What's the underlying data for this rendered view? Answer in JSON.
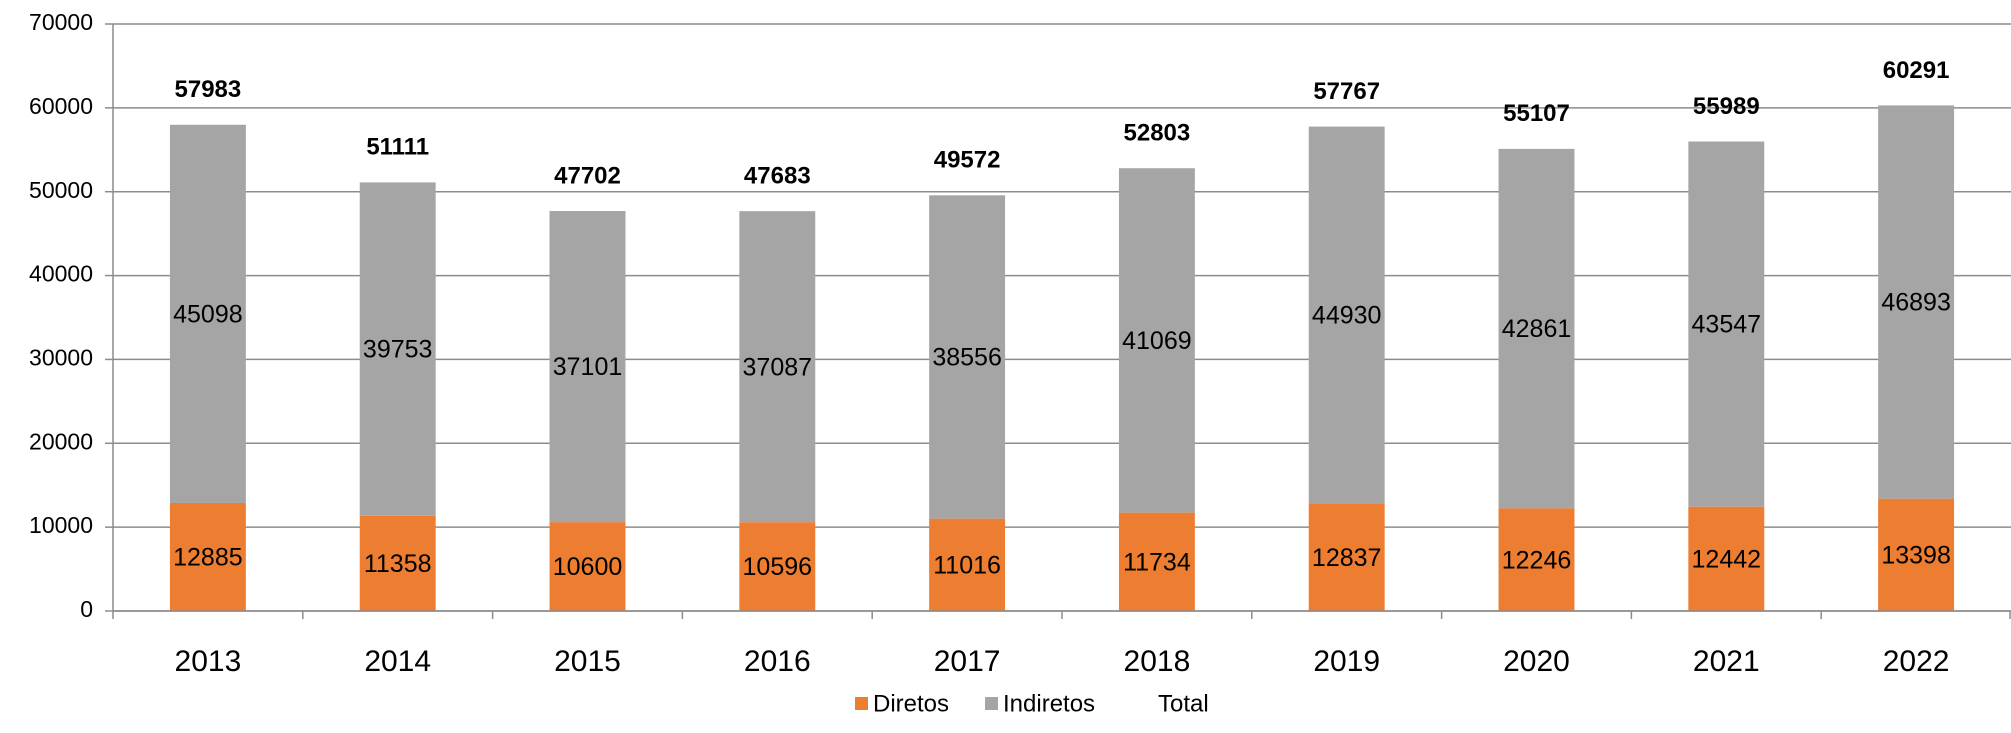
{
  "chart_data": {
    "type": "stacked_bar",
    "categories": [
      "2013",
      "2014",
      "2015",
      "2016",
      "2017",
      "2018",
      "2019",
      "2020",
      "2021",
      "2022"
    ],
    "series": [
      {
        "name": "Diretos",
        "color": "#ed7d31",
        "values": [
          12885,
          11358,
          10600,
          10596,
          11016,
          11734,
          12837,
          12246,
          12442,
          13398
        ]
      },
      {
        "name": "Indiretos",
        "color": "#a5a5a5",
        "values": [
          45098,
          39753,
          37101,
          37087,
          38556,
          41069,
          44930,
          42861,
          43547,
          46893
        ]
      },
      {
        "name": "Total",
        "values": [
          57983,
          51111,
          47702,
          47683,
          49572,
          52803,
          57767,
          55107,
          55989,
          60291
        ]
      }
    ],
    "ylim": [
      0,
      70000
    ],
    "yticks": [
      0,
      10000,
      20000,
      30000,
      40000,
      50000,
      60000,
      70000
    ],
    "grid": true,
    "legend": "bottom"
  }
}
